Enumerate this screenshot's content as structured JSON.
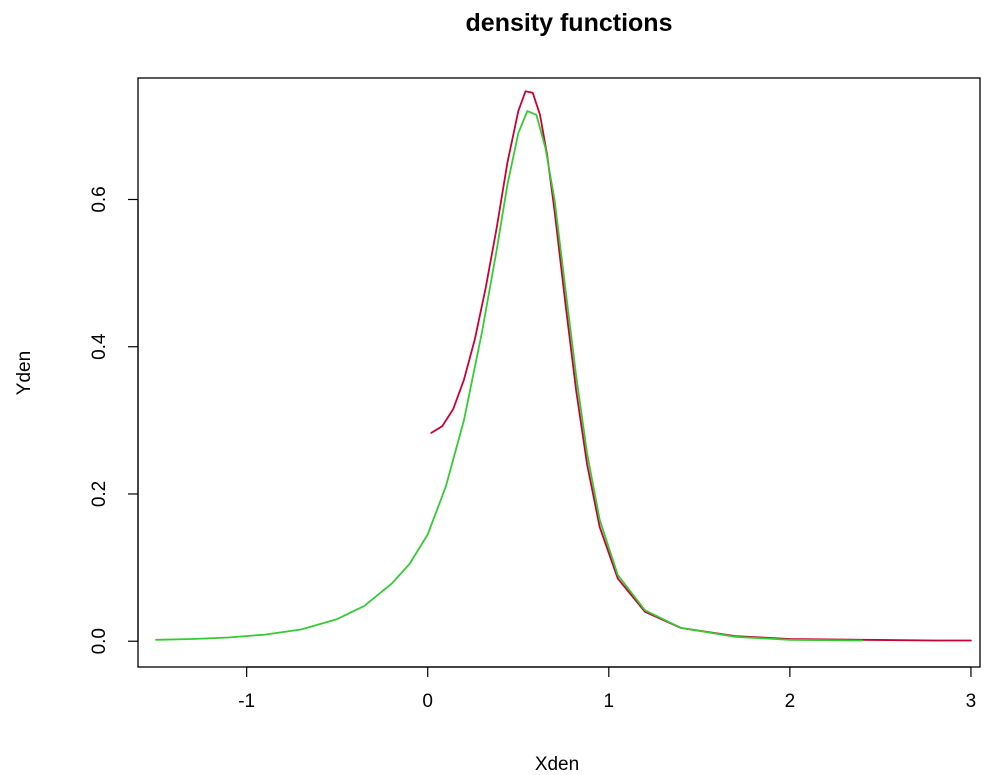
{
  "chart_data": {
    "type": "line",
    "title": "density functions",
    "xlabel": "Xden",
    "ylabel": "Yden",
    "xlim": [
      -1.6,
      3.05
    ],
    "ylim": [
      -0.035,
      0.765
    ],
    "x_ticks": [
      {
        "value": -1,
        "label": "-1"
      },
      {
        "value": 0,
        "label": "0"
      },
      {
        "value": 1,
        "label": "1"
      },
      {
        "value": 2,
        "label": "2"
      },
      {
        "value": 3,
        "label": "3"
      }
    ],
    "y_ticks": [
      {
        "value": 0.0,
        "label": "0.0"
      },
      {
        "value": 0.2,
        "label": "0.2"
      },
      {
        "value": 0.4,
        "label": "0.4"
      },
      {
        "value": 0.6,
        "label": "0.6"
      }
    ],
    "grid": false,
    "series": [
      {
        "color": "#cc0033",
        "x": [
          0.02,
          0.08,
          0.14,
          0.2,
          0.26,
          0.32,
          0.38,
          0.44,
          0.5,
          0.54,
          0.58,
          0.62,
          0.66,
          0.7,
          0.76,
          0.82,
          0.88,
          0.95,
          1.05,
          1.2,
          1.4,
          1.7,
          2.0,
          2.4,
          2.8,
          3.0
        ],
        "y": [
          0.283,
          0.292,
          0.315,
          0.355,
          0.41,
          0.48,
          0.56,
          0.65,
          0.72,
          0.747,
          0.745,
          0.715,
          0.66,
          0.585,
          0.46,
          0.34,
          0.24,
          0.155,
          0.085,
          0.04,
          0.018,
          0.007,
          0.003,
          0.002,
          0.001,
          0.001
        ]
      },
      {
        "color": "#33cc33",
        "x": [
          -1.5,
          -1.3,
          -1.1,
          -0.9,
          -0.7,
          -0.5,
          -0.35,
          -0.2,
          -0.1,
          0.0,
          0.1,
          0.2,
          0.3,
          0.38,
          0.44,
          0.5,
          0.55,
          0.6,
          0.65,
          0.7,
          0.76,
          0.82,
          0.88,
          0.95,
          1.05,
          1.2,
          1.4,
          1.7,
          2.0,
          2.4
        ],
        "y": [
          0.002,
          0.003,
          0.005,
          0.009,
          0.016,
          0.03,
          0.048,
          0.078,
          0.105,
          0.145,
          0.21,
          0.3,
          0.42,
          0.53,
          0.62,
          0.69,
          0.72,
          0.715,
          0.67,
          0.6,
          0.48,
          0.36,
          0.255,
          0.165,
          0.09,
          0.042,
          0.018,
          0.006,
          0.002,
          0.001
        ]
      }
    ]
  }
}
